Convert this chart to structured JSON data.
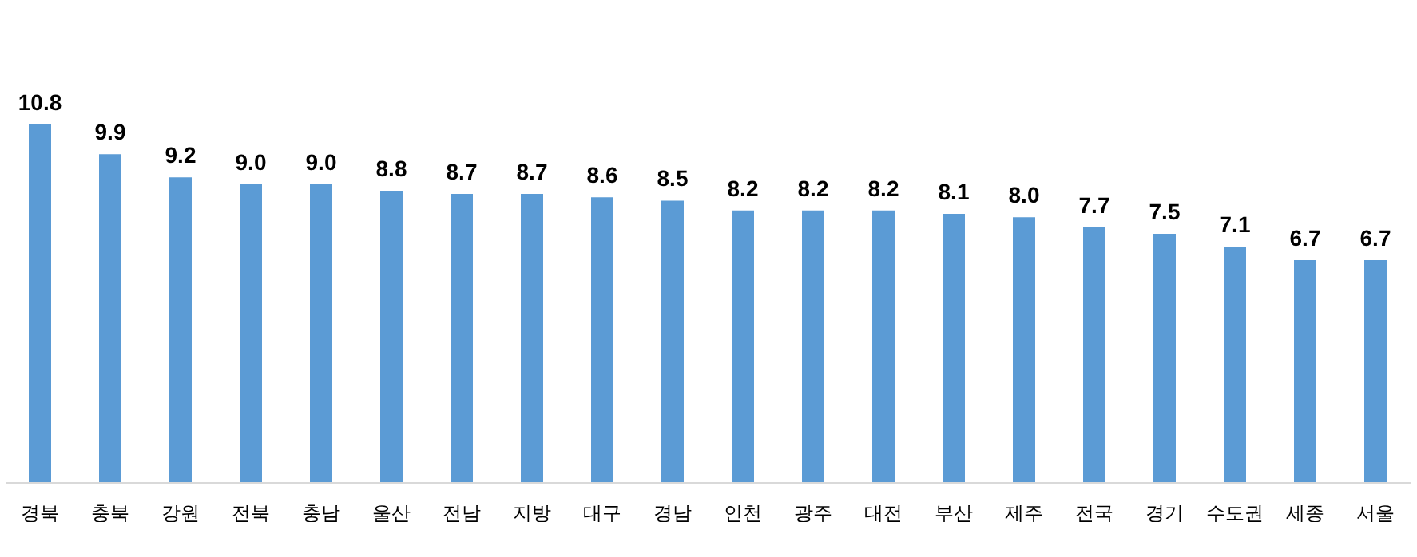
{
  "chart_data": {
    "type": "bar",
    "categories": [
      "경북",
      "충북",
      "강원",
      "전북",
      "충남",
      "울산",
      "전남",
      "지방",
      "대구",
      "경남",
      "인천",
      "광주",
      "대전",
      "부산",
      "제주",
      "전국",
      "경기",
      "수도권",
      "세종",
      "서울"
    ],
    "values": [
      10.8,
      9.9,
      9.2,
      9.0,
      9.0,
      8.8,
      8.7,
      8.7,
      8.6,
      8.5,
      8.2,
      8.2,
      8.2,
      8.1,
      8.0,
      7.7,
      7.5,
      7.1,
      6.7,
      6.7
    ],
    "color": "#5b9bd5",
    "data_labels": true,
    "value_labels": [
      "10.8",
      "9.9",
      "9.2",
      "9.0",
      "9.0",
      "8.8",
      "8.7",
      "8.7",
      "8.6",
      "8.5",
      "8.2",
      "8.2",
      "8.2",
      "8.1",
      "8.0",
      "7.7",
      "7.5",
      "7.1",
      "6.7",
      "6.7"
    ]
  }
}
